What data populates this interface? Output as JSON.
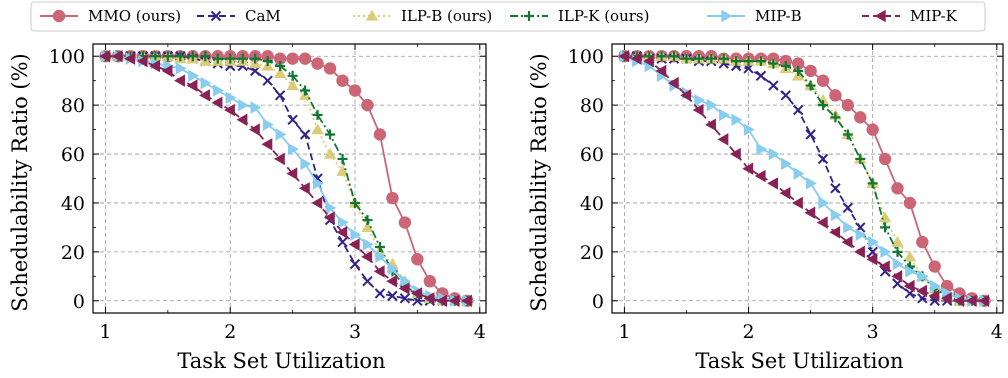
{
  "legend": [
    {
      "name": "MMO (ours)",
      "color": "#CC6677",
      "marker": "circle",
      "dash": "solid"
    },
    {
      "name": "CaM",
      "color": "#332288",
      "marker": "x",
      "dash": "dashed"
    },
    {
      "name": "ILP-B (ours)",
      "color": "#DDCC77",
      "marker": "triangle-up",
      "dash": "dotted"
    },
    {
      "name": "ILP-K (ours)",
      "color": "#117733",
      "marker": "plus",
      "dash": "dashdot"
    },
    {
      "name": "MIP-B",
      "color": "#88CCEE",
      "marker": "triangle-right",
      "dash": "solid"
    },
    {
      "name": "MIP-K",
      "color": "#882255",
      "marker": "triangle-left",
      "dash": "dashed"
    }
  ],
  "chart_data": [
    {
      "type": "line",
      "xlabel": "Task Set Utilization",
      "ylabel": "Schedulability Ratio (%)",
      "xlim": [
        0.9,
        4.05
      ],
      "ylim": [
        -5,
        105
      ],
      "xticks": [
        1,
        2,
        3,
        4
      ],
      "yticks": [
        0,
        20,
        40,
        60,
        80,
        100
      ],
      "grid": true,
      "x": [
        1.0,
        1.1,
        1.2,
        1.3,
        1.4,
        1.5,
        1.6,
        1.7,
        1.8,
        1.9,
        2.0,
        2.1,
        2.2,
        2.3,
        2.4,
        2.5,
        2.6,
        2.7,
        2.8,
        2.9,
        3.0,
        3.1,
        3.2,
        3.3,
        3.4,
        3.5,
        3.6,
        3.7,
        3.8,
        3.9
      ],
      "series": [
        {
          "name": "MMO (ours)",
          "values": [
            100,
            100,
            100,
            100,
            100,
            100,
            100,
            100,
            100,
            100,
            100,
            100,
            100,
            100,
            99,
            99,
            99,
            97,
            95,
            90,
            86,
            80,
            68,
            42,
            32,
            17,
            8,
            3,
            1,
            0
          ]
        },
        {
          "name": "CaM",
          "values": [
            100,
            100,
            100,
            100,
            100,
            100,
            100,
            99,
            98,
            97,
            96,
            96,
            94,
            90,
            84,
            74,
            68,
            50,
            33,
            24,
            15,
            8,
            3,
            2,
            1,
            0,
            0,
            0,
            0,
            0
          ]
        },
        {
          "name": "ILP-B (ours)",
          "values": [
            100,
            100,
            100,
            100,
            100,
            100,
            99,
            99,
            98,
            98,
            98,
            98,
            97,
            96,
            93,
            88,
            84,
            70,
            60,
            53,
            40,
            30,
            20,
            15,
            8,
            3,
            1,
            0,
            0,
            0
          ]
        },
        {
          "name": "ILP-K (ours)",
          "values": [
            100,
            100,
            100,
            100,
            100,
            100,
            100,
            100,
            100,
            99,
            99,
            99,
            99,
            98,
            96,
            92,
            86,
            76,
            68,
            58,
            40,
            33,
            22,
            12,
            6,
            3,
            1,
            0,
            0,
            0
          ]
        },
        {
          "name": "MIP-B",
          "values": [
            100,
            100,
            99,
            98,
            97,
            96,
            95,
            92,
            89,
            86,
            83,
            80,
            79,
            72,
            68,
            62,
            56,
            48,
            38,
            32,
            27,
            23,
            18,
            13,
            8,
            4,
            2,
            1,
            0,
            0
          ]
        },
        {
          "name": "MIP-K",
          "values": [
            100,
            100,
            99,
            98,
            96,
            94,
            90,
            88,
            84,
            81,
            78,
            74,
            70,
            64,
            58,
            52,
            46,
            40,
            34,
            28,
            23,
            18,
            12,
            8,
            5,
            3,
            1,
            0,
            0,
            0
          ]
        }
      ]
    },
    {
      "type": "line",
      "xlabel": "Task Set Utilization",
      "ylabel": "Schedulability Ratio (%)",
      "xlim": [
        0.9,
        4.05
      ],
      "ylim": [
        -5,
        105
      ],
      "xticks": [
        1,
        2,
        3,
        4
      ],
      "yticks": [
        0,
        20,
        40,
        60,
        80,
        100
      ],
      "grid": true,
      "x": [
        1.0,
        1.1,
        1.2,
        1.3,
        1.4,
        1.5,
        1.6,
        1.7,
        1.8,
        1.9,
        2.0,
        2.1,
        2.2,
        2.3,
        2.4,
        2.5,
        2.6,
        2.7,
        2.8,
        2.9,
        3.0,
        3.1,
        3.2,
        3.3,
        3.4,
        3.5,
        3.6,
        3.7,
        3.8,
        3.9
      ],
      "series": [
        {
          "name": "MMO (ours)",
          "values": [
            100,
            100,
            100,
            100,
            100,
            100,
            100,
            100,
            99,
            99,
            99,
            99,
            99,
            98,
            97,
            94,
            90,
            84,
            80,
            75,
            70,
            58,
            46,
            40,
            24,
            14,
            6,
            3,
            1,
            0
          ]
        },
        {
          "name": "CaM",
          "values": [
            100,
            100,
            99,
            99,
            99,
            99,
            98,
            98,
            97,
            96,
            95,
            92,
            88,
            84,
            78,
            68,
            58,
            46,
            38,
            30,
            20,
            12,
            7,
            3,
            1,
            0,
            0,
            0,
            0,
            0
          ]
        },
        {
          "name": "ILP-B (ours)",
          "values": [
            100,
            100,
            100,
            100,
            100,
            99,
            99,
            99,
            99,
            98,
            98,
            98,
            97,
            95,
            92,
            88,
            82,
            76,
            68,
            58,
            48,
            34,
            24,
            18,
            10,
            5,
            2,
            0,
            0,
            0
          ]
        },
        {
          "name": "ILP-K (ours)",
          "values": [
            100,
            100,
            100,
            100,
            100,
            99,
            99,
            99,
            99,
            98,
            98,
            98,
            97,
            96,
            94,
            88,
            80,
            75,
            68,
            58,
            48,
            30,
            20,
            14,
            10,
            5,
            2,
            0,
            0,
            0
          ]
        },
        {
          "name": "MIP-B",
          "values": [
            100,
            98,
            96,
            92,
            88,
            85,
            82,
            80,
            76,
            74,
            70,
            62,
            60,
            56,
            52,
            48,
            40,
            35,
            30,
            27,
            24,
            20,
            15,
            12,
            10,
            6,
            3,
            1,
            0,
            0
          ]
        },
        {
          "name": "MIP-K",
          "values": [
            100,
            99,
            98,
            94,
            89,
            84,
            78,
            72,
            66,
            60,
            54,
            51,
            48,
            44,
            40,
            36,
            32,
            28,
            24,
            20,
            17,
            14,
            10,
            6,
            4,
            2,
            1,
            0,
            0,
            0
          ]
        }
      ]
    }
  ]
}
